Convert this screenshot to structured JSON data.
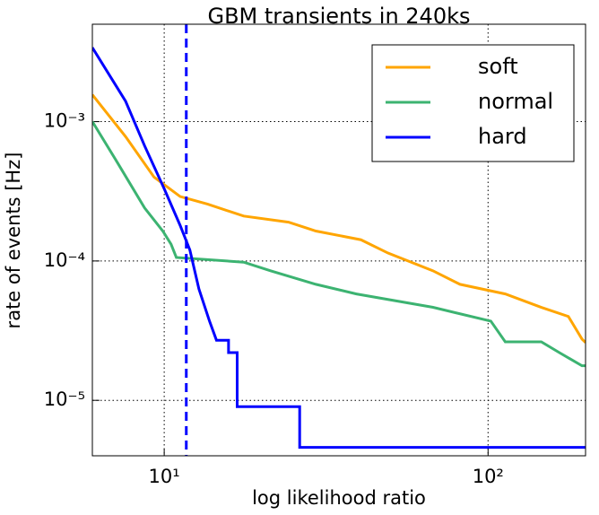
{
  "chart_data": {
    "type": "line",
    "title": "GBM transients in 240ks",
    "x_label": "log likelihood ratio",
    "y_label": "rate of events [Hz]",
    "xscale": "log",
    "yscale": "log",
    "grid": true,
    "legend": "upper right",
    "xlim": [
      6,
      200
    ],
    "ylim": [
      4e-06,
      0.005
    ],
    "xticks": [
      {
        "value": 10,
        "label": "10¹"
      },
      {
        "value": 100,
        "label": "10²"
      }
    ],
    "yticks": [
      {
        "value": 1e-05,
        "label": "10⁻⁵"
      },
      {
        "value": 0.0001,
        "label": "10⁻⁴"
      },
      {
        "value": 0.001,
        "label": "10⁻³"
      }
    ],
    "vline": 11.7,
    "vline_color": "#0000ff",
    "series": [
      {
        "name": "soft",
        "color": "#ffa500",
        "x": [
          6,
          7.6,
          9.3,
          11.2,
          13.6,
          17.6,
          24.2,
          29.4,
          40.5,
          49.1,
          67.6,
          81.9,
          113,
          146,
          177,
          195,
          200
        ],
        "values": [
          0.00156,
          0.00078,
          0.0004,
          0.00029,
          0.000256,
          0.00021,
          0.00019,
          0.000164,
          0.000142,
          0.000114,
          8.5e-05,
          6.8e-05,
          5.8e-05,
          4.65e-05,
          4e-05,
          2.75e-05,
          2.6e-05
        ]
      },
      {
        "name": "normal",
        "color": "#3cb371",
        "x": [
          6,
          7.2,
          8.7,
          9.9,
          10.5,
          10.9,
          17.6,
          21.3,
          29.4,
          39.2,
          67.6,
          102,
          113,
          146,
          166,
          195,
          200
        ],
        "values": [
          0.001,
          0.0005,
          0.00024,
          0.000164,
          0.000132,
          0.000106,
          9.8e-05,
          8.5e-05,
          6.8e-05,
          5.8e-05,
          4.65e-05,
          3.7e-05,
          2.63e-05,
          2.63e-05,
          2.2e-05,
          1.77e-05,
          1.77e-05
        ]
      },
      {
        "name": "hard",
        "color": "#0000ff",
        "x": [
          6,
          7.6,
          8.7,
          10,
          11.2,
          12,
          12.8,
          13.8,
          14.5,
          15.8,
          15.8,
          16.8,
          16.8,
          26.2,
          26.2,
          200
        ],
        "values": [
          0.0034,
          0.0014,
          0.00067,
          0.00033,
          0.00018,
          0.00012,
          6.3e-05,
          3.7e-05,
          2.7e-05,
          2.7e-05,
          2.2e-05,
          2.2e-05,
          9e-06,
          9e-06,
          4.6e-06,
          4.6e-06
        ]
      }
    ]
  }
}
